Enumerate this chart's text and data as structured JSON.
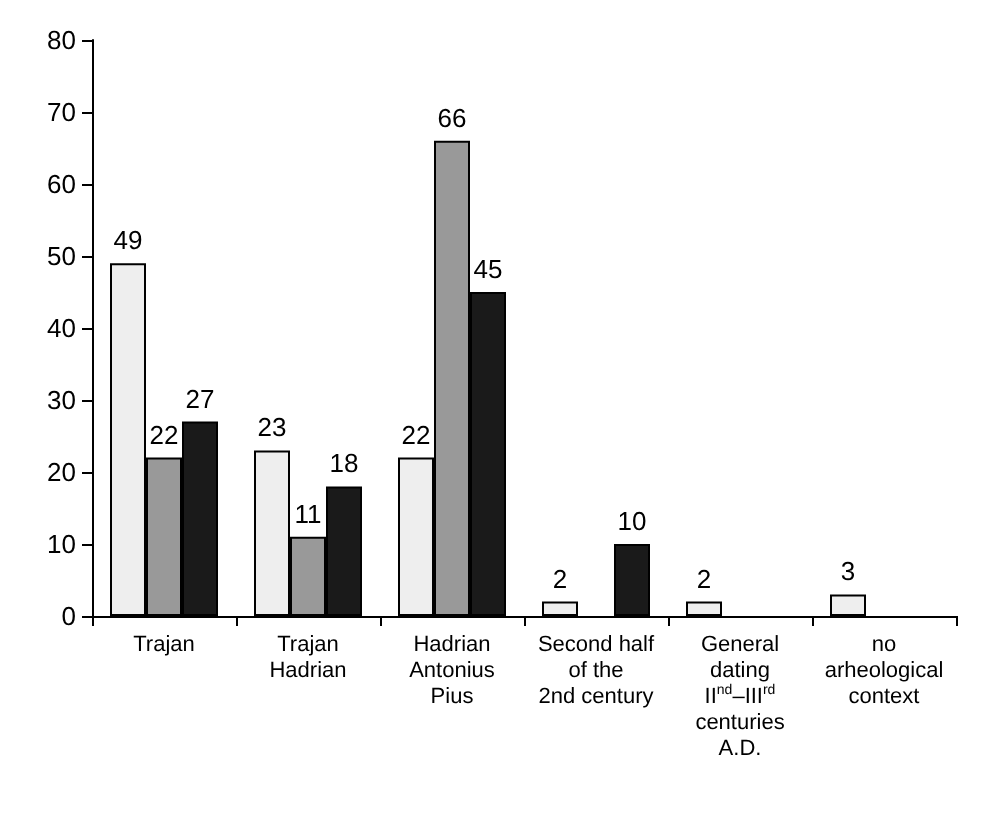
{
  "chart_data": {
    "type": "bar",
    "categories": [
      "Trajan",
      "Trajan\nHadrian",
      "Hadrian\nAntonius\nPius",
      "Second half\nof the\n2nd century",
      "General\ndating\nII$^{nd}$–III$^{rd}$\ncenturies\nA.D.",
      "no\narheological\ncontext"
    ],
    "series": [
      {
        "color": "#eeeeee",
        "values": [
          49,
          23,
          22,
          2,
          2,
          3
        ]
      },
      {
        "color": "#999999",
        "values": [
          22,
          11,
          66,
          null,
          null,
          null
        ]
      },
      {
        "color": "#1a1a1a",
        "values": [
          27,
          18,
          45,
          10,
          null,
          null
        ]
      }
    ],
    "ylim": [
      0,
      80
    ],
    "yticks": [
      0,
      10,
      20,
      30,
      40,
      50,
      60,
      70,
      80
    ],
    "data_labels": true,
    "grid": false
  }
}
